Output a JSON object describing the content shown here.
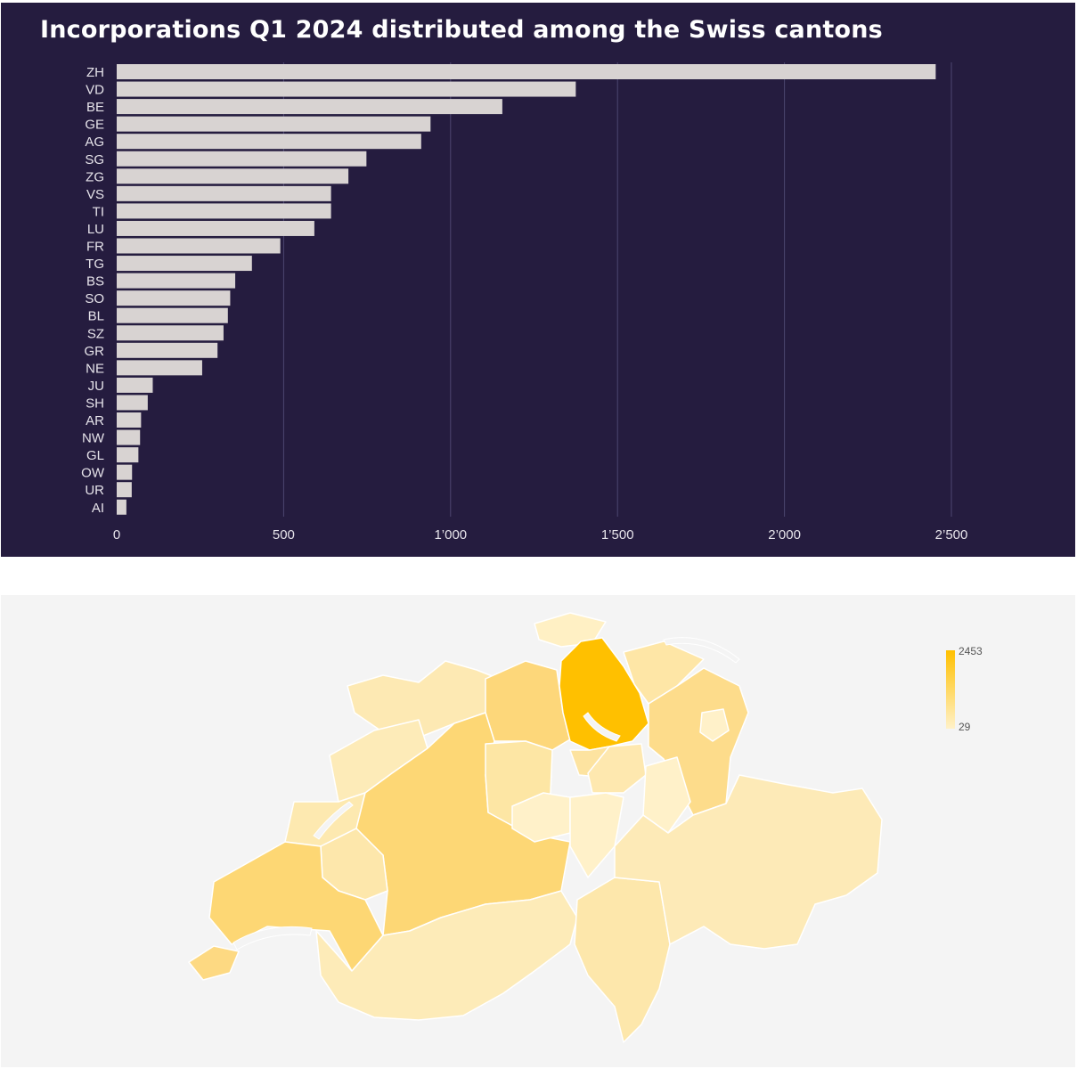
{
  "chart_data": [
    {
      "type": "bar",
      "orientation": "horizontal",
      "title": "Incorporations Q1 2024 distributed among the Swiss cantons",
      "categories": [
        "ZH",
        "VD",
        "BE",
        "GE",
        "AG",
        "SG",
        "ZG",
        "VS",
        "TI",
        "LU",
        "FR",
        "TG",
        "BS",
        "SO",
        "BL",
        "SZ",
        "GR",
        "NE",
        "JU",
        "SH",
        "AR",
        "NW",
        "GL",
        "OW",
        "UR",
        "AI"
      ],
      "values": [
        2453,
        1375,
        1155,
        940,
        912,
        748,
        694,
        642,
        642,
        592,
        490,
        405,
        355,
        340,
        333,
        320,
        302,
        256,
        108,
        93,
        73,
        70,
        65,
        46,
        45,
        29
      ],
      "x_ticks": [
        "0",
        "500",
        "1’000",
        "1’500",
        "2’000",
        "2’500"
      ],
      "x_tick_values": [
        0,
        500,
        1000,
        1500,
        2000,
        2500
      ],
      "xlim": [
        0,
        2800
      ],
      "grid": "vertical",
      "bar_color": "#d8d3d2",
      "background_color": "#251c3f"
    },
    {
      "type": "choropleth",
      "legend": {
        "max_label": "2453",
        "min_label": "29",
        "max_color": "#ffc000",
        "min_color": "#fff1c9"
      }
    }
  ]
}
